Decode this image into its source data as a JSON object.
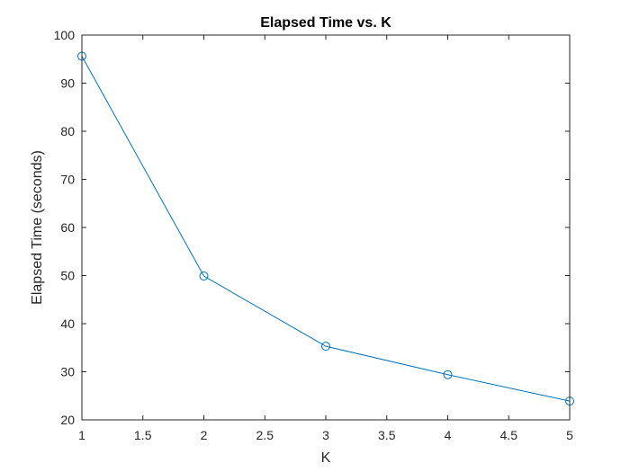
{
  "chart_data": {
    "type": "line",
    "title": "Elapsed Time vs. K",
    "xlabel": "K",
    "ylabel": "Elapsed Time (seconds)",
    "x": [
      1,
      2,
      3,
      4,
      5
    ],
    "series": [
      {
        "values": [
          95.6,
          49.9,
          35.3,
          29.4,
          23.9
        ],
        "color": "#0072BD",
        "marker": "circle"
      }
    ],
    "xlim": [
      1,
      5
    ],
    "ylim": [
      20,
      100
    ],
    "xticks": [
      "1",
      "1.5",
      "2",
      "2.5",
      "3",
      "3.5",
      "4",
      "4.5",
      "5"
    ],
    "yticks": [
      "20",
      "30",
      "40",
      "50",
      "60",
      "70",
      "80",
      "90",
      "100"
    ],
    "grid": false,
    "legend": "none"
  }
}
